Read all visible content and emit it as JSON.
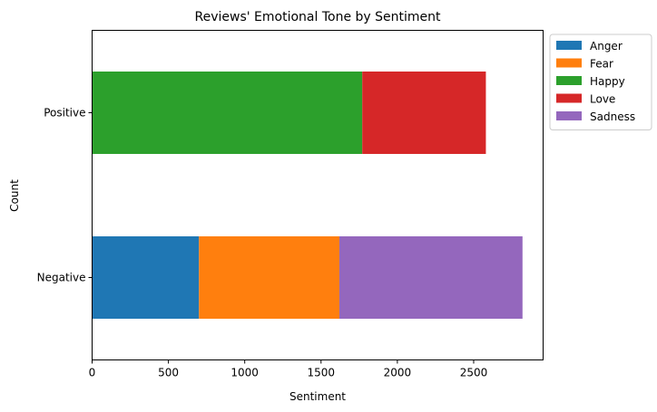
{
  "chart_data": {
    "type": "bar",
    "orientation": "horizontal",
    "stacked": true,
    "title": "Reviews' Emotional Tone by Sentiment",
    "xlabel": "Sentiment",
    "ylabel": "Count",
    "categories": [
      "Negative",
      "Positive"
    ],
    "xlim": [
      0,
      2955
    ],
    "xticks": [
      0,
      500,
      1000,
      1500,
      2000,
      2500
    ],
    "grid": false,
    "legend_position": "outside-top-right",
    "series": [
      {
        "name": "Anger",
        "values": [
          700,
          0
        ],
        "color": "#1f77b4"
      },
      {
        "name": "Fear",
        "values": [
          920,
          0
        ],
        "color": "#ff7f0e"
      },
      {
        "name": "Happy",
        "values": [
          0,
          1770
        ],
        "color": "#2ca02c"
      },
      {
        "name": "Love",
        "values": [
          0,
          810
        ],
        "color": "#d62728"
      },
      {
        "name": "Sadness",
        "values": [
          1200,
          0
        ],
        "color": "#9467bd"
      }
    ]
  }
}
